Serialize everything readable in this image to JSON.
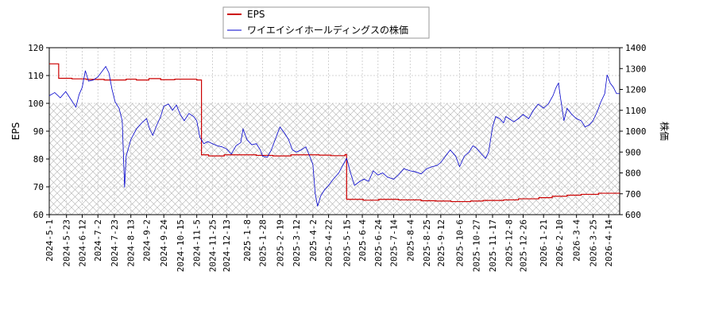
{
  "chart_data": {
    "type": "line",
    "title": "",
    "xlabel": "",
    "ylabel": "EPS",
    "y2label": "株価",
    "ylim": [
      60,
      120
    ],
    "yticks": [
      60,
      70,
      80,
      90,
      100,
      110,
      120
    ],
    "y2lim": [
      600,
      1400
    ],
    "y2ticks": [
      600,
      700,
      800,
      900,
      1000,
      1100,
      1200,
      1300,
      1400
    ],
    "xlim": [
      "2024-05-01",
      "2026-04-28"
    ],
    "xticks": [
      "2024-5-1",
      "2024-5-23",
      "2024-6-12",
      "2024-7-2",
      "2024-7-23",
      "2024-8-13",
      "2024-9-2",
      "2024-9-24",
      "2024-10-15",
      "2024-11-5",
      "2024-11-25",
      "2024-12-13",
      "2025-1-8",
      "2025-1-28",
      "2025-2-19",
      "2025-3-12",
      "2025-4-2",
      "2025-4-22",
      "2025-5-15",
      "2025-6-4",
      "2025-6-24",
      "2025-7-14",
      "2025-8-4",
      "2025-8-25",
      "2025-9-12",
      "2025-10-6",
      "2025-10-27",
      "2025-11-17",
      "2025-12-8",
      "2025-12-26",
      "2026-1-21",
      "2026-2-10",
      "2026-3-4",
      "2026-3-25",
      "2026-4-14"
    ],
    "grid": true,
    "legend_position": "top-center",
    "hatched_region_y": [
      60,
      100
    ],
    "series": [
      {
        "name": "EPS",
        "color": "#cc0000",
        "axis": "left",
        "step": true,
        "points": [
          [
            "2024-05-01",
            114.2
          ],
          [
            "2024-05-13",
            109.0
          ],
          [
            "2024-05-30",
            108.8
          ],
          [
            "2024-06-17",
            108.6
          ],
          [
            "2024-07-10",
            108.4
          ],
          [
            "2024-08-07",
            108.7
          ],
          [
            "2024-08-20",
            108.4
          ],
          [
            "2024-09-05",
            108.9
          ],
          [
            "2024-09-20",
            108.5
          ],
          [
            "2024-10-08",
            108.7
          ],
          [
            "2024-10-25",
            108.7
          ],
          [
            "2024-11-05",
            108.4
          ],
          [
            "2024-11-11",
            81.5
          ],
          [
            "2024-11-20",
            81.1
          ],
          [
            "2024-12-10",
            81.5
          ],
          [
            "2025-01-20",
            81.3
          ],
          [
            "2025-02-10",
            81.1
          ],
          [
            "2025-03-05",
            81.5
          ],
          [
            "2025-04-10",
            81.4
          ],
          [
            "2025-04-25",
            81.2
          ],
          [
            "2025-05-13",
            81.6
          ],
          [
            "2025-05-15",
            65.5
          ],
          [
            "2025-06-05",
            65.2
          ],
          [
            "2025-06-25",
            65.5
          ],
          [
            "2025-07-20",
            65.3
          ],
          [
            "2025-08-18",
            65.0
          ],
          [
            "2025-09-05",
            64.9
          ],
          [
            "2025-09-25",
            64.7
          ],
          [
            "2025-10-20",
            64.9
          ],
          [
            "2025-11-05",
            65.1
          ],
          [
            "2025-12-01",
            65.3
          ],
          [
            "2025-12-20",
            65.7
          ],
          [
            "2026-01-15",
            66.1
          ],
          [
            "2026-02-01",
            66.6
          ],
          [
            "2026-02-20",
            67.0
          ],
          [
            "2026-03-10",
            67.3
          ],
          [
            "2026-04-01",
            67.7
          ],
          [
            "2026-04-28",
            67.6
          ]
        ]
      },
      {
        "name": "ワイエイシイホールディングスの株価",
        "color": "#0000cc",
        "axis": "right",
        "step": false,
        "points": [
          [
            "2024-05-01",
            1170
          ],
          [
            "2024-05-08",
            1185
          ],
          [
            "2024-05-15",
            1160
          ],
          [
            "2024-05-22",
            1190
          ],
          [
            "2024-05-29",
            1150
          ],
          [
            "2024-06-04",
            1115
          ],
          [
            "2024-06-08",
            1175
          ],
          [
            "2024-06-12",
            1210
          ],
          [
            "2024-06-16",
            1290
          ],
          [
            "2024-06-20",
            1240
          ],
          [
            "2024-06-26",
            1245
          ],
          [
            "2024-07-02",
            1260
          ],
          [
            "2024-07-08",
            1290
          ],
          [
            "2024-07-12",
            1310
          ],
          [
            "2024-07-16",
            1280
          ],
          [
            "2024-07-20",
            1200
          ],
          [
            "2024-07-24",
            1140
          ],
          [
            "2024-07-29",
            1110
          ],
          [
            "2024-08-02",
            1050
          ],
          [
            "2024-08-05",
            730
          ],
          [
            "2024-08-07",
            880
          ],
          [
            "2024-08-13",
            960
          ],
          [
            "2024-08-20",
            1010
          ],
          [
            "2024-08-27",
            1040
          ],
          [
            "2024-09-02",
            1060
          ],
          [
            "2024-09-06",
            1010
          ],
          [
            "2024-09-10",
            980
          ],
          [
            "2024-09-14",
            1020
          ],
          [
            "2024-09-20",
            1070
          ],
          [
            "2024-09-24",
            1120
          ],
          [
            "2024-09-30",
            1130
          ],
          [
            "2024-10-05",
            1100
          ],
          [
            "2024-10-10",
            1125
          ],
          [
            "2024-10-15",
            1080
          ],
          [
            "2024-10-20",
            1050
          ],
          [
            "2024-10-26",
            1085
          ],
          [
            "2024-11-01",
            1070
          ],
          [
            "2024-11-05",
            1050
          ],
          [
            "2024-11-09",
            970
          ],
          [
            "2024-11-14",
            940
          ],
          [
            "2024-11-19",
            950
          ],
          [
            "2024-11-25",
            940
          ],
          [
            "2024-12-01",
            930
          ],
          [
            "2024-12-07",
            925
          ],
          [
            "2024-12-13",
            915
          ],
          [
            "2024-12-19",
            890
          ],
          [
            "2024-12-25",
            930
          ],
          [
            "2024-12-31",
            945
          ],
          [
            "2025-01-03",
            1010
          ],
          [
            "2025-01-08",
            960
          ],
          [
            "2025-01-14",
            935
          ],
          [
            "2025-01-20",
            940
          ],
          [
            "2025-01-25",
            910
          ],
          [
            "2025-01-28",
            880
          ],
          [
            "2025-02-03",
            875
          ],
          [
            "2025-02-08",
            910
          ],
          [
            "2025-02-13",
            960
          ],
          [
            "2025-02-19",
            1020
          ],
          [
            "2025-02-25",
            990
          ],
          [
            "2025-03-02",
            960
          ],
          [
            "2025-03-07",
            910
          ],
          [
            "2025-03-12",
            900
          ],
          [
            "2025-03-18",
            910
          ],
          [
            "2025-03-24",
            925
          ],
          [
            "2025-03-29",
            880
          ],
          [
            "2025-04-02",
            840
          ],
          [
            "2025-04-05",
            700
          ],
          [
            "2025-04-08",
            640
          ],
          [
            "2025-04-12",
            690
          ],
          [
            "2025-04-17",
            720
          ],
          [
            "2025-04-22",
            740
          ],
          [
            "2025-04-28",
            770
          ],
          [
            "2025-05-05",
            800
          ],
          [
            "2025-05-12",
            850
          ],
          [
            "2025-05-15",
            870
          ],
          [
            "2025-05-20",
            800
          ],
          [
            "2025-05-25",
            740
          ],
          [
            "2025-06-01",
            760
          ],
          [
            "2025-06-06",
            770
          ],
          [
            "2025-06-12",
            760
          ],
          [
            "2025-06-18",
            810
          ],
          [
            "2025-06-24",
            790
          ],
          [
            "2025-06-30",
            800
          ],
          [
            "2025-07-06",
            780
          ],
          [
            "2025-07-14",
            770
          ],
          [
            "2025-07-20",
            790
          ],
          [
            "2025-07-27",
            820
          ],
          [
            "2025-08-04",
            810
          ],
          [
            "2025-08-11",
            805
          ],
          [
            "2025-08-18",
            795
          ],
          [
            "2025-08-25",
            820
          ],
          [
            "2025-09-01",
            830
          ],
          [
            "2025-09-07",
            835
          ],
          [
            "2025-09-12",
            850
          ],
          [
            "2025-09-18",
            880
          ],
          [
            "2025-09-24",
            910
          ],
          [
            "2025-10-01",
            880
          ],
          [
            "2025-10-06",
            830
          ],
          [
            "2025-10-12",
            880
          ],
          [
            "2025-10-18",
            900
          ],
          [
            "2025-10-23",
            930
          ],
          [
            "2025-10-27",
            920
          ],
          [
            "2025-11-03",
            890
          ],
          [
            "2025-11-08",
            870
          ],
          [
            "2025-11-12",
            900
          ],
          [
            "2025-11-17",
            1020
          ],
          [
            "2025-11-21",
            1070
          ],
          [
            "2025-11-26",
            1060
          ],
          [
            "2025-12-01",
            1040
          ],
          [
            "2025-12-04",
            1070
          ],
          [
            "2025-12-08",
            1060
          ],
          [
            "2025-12-14",
            1045
          ],
          [
            "2025-12-20",
            1060
          ],
          [
            "2025-12-26",
            1080
          ],
          [
            "2026-01-02",
            1060
          ],
          [
            "2026-01-08",
            1100
          ],
          [
            "2026-01-14",
            1130
          ],
          [
            "2026-01-21",
            1110
          ],
          [
            "2026-01-27",
            1130
          ],
          [
            "2026-02-02",
            1170
          ],
          [
            "2026-02-06",
            1210
          ],
          [
            "2026-02-09",
            1230
          ],
          [
            "2026-02-12",
            1150
          ],
          [
            "2026-02-16",
            1050
          ],
          [
            "2026-02-20",
            1110
          ],
          [
            "2026-02-26",
            1080
          ],
          [
            "2026-03-04",
            1060
          ],
          [
            "2026-03-10",
            1050
          ],
          [
            "2026-03-15",
            1020
          ],
          [
            "2026-03-20",
            1030
          ],
          [
            "2026-03-25",
            1050
          ],
          [
            "2026-03-30",
            1090
          ],
          [
            "2026-04-04",
            1140
          ],
          [
            "2026-04-09",
            1180
          ],
          [
            "2026-04-12",
            1270
          ],
          [
            "2026-04-16",
            1230
          ],
          [
            "2026-04-20",
            1210
          ],
          [
            "2026-04-24",
            1180
          ],
          [
            "2026-04-28",
            1180
          ]
        ]
      }
    ]
  }
}
